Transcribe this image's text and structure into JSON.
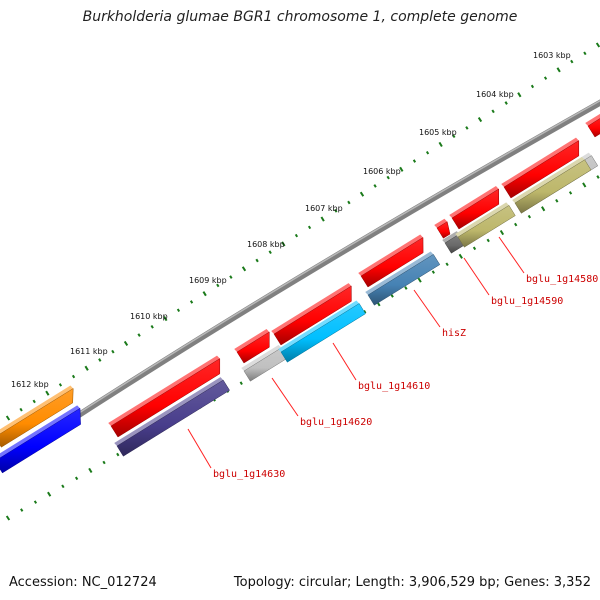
{
  "title": "Burkholderia glumae BGR1 chromosome 1, complete genome",
  "footer": {
    "accession": "Accession: NC_012724",
    "summary": "Topology: circular; Length: 3,906,529 bp; Genes: 3,352"
  },
  "colors": {
    "backbone": "#808080",
    "ticks": "#1a7a1a",
    "label": "#cc0000",
    "leader": "#ff2222"
  },
  "ticks": [
    "1603 kbp",
    "1604 kbp",
    "1605 kbp",
    "1606 kbp",
    "1607 kbp",
    "1608 kbp",
    "1609 kbp",
    "1610 kbp",
    "1611 kbp",
    "1612 kbp"
  ],
  "genes": [
    {
      "label": "",
      "color": "#ff8c00",
      "track": "outer"
    },
    {
      "label": "",
      "color": "#0000ff",
      "track": "outer"
    },
    {
      "label": "",
      "color": "#ff0000",
      "track": "inner"
    },
    {
      "label": "bglu_1g14630",
      "color": "#483d8b",
      "track": "inner"
    },
    {
      "label": "",
      "color": "#ff0000",
      "track": "inner"
    },
    {
      "label": "bglu_1g14620",
      "color": "#c0c0c0",
      "track": "inner"
    },
    {
      "label": "",
      "color": "#ff0000",
      "track": "inner"
    },
    {
      "label": "bglu_1g14610",
      "color": "#00bfff",
      "track": "inner"
    },
    {
      "label": "",
      "color": "#ff0000",
      "track": "inner"
    },
    {
      "label": "hisZ",
      "color": "#4682b4",
      "track": "inner"
    },
    {
      "label": "",
      "color": "#ff0000",
      "track": "inner"
    },
    {
      "label": "bglu_1g14590",
      "color": "#696969",
      "track": "inner"
    },
    {
      "label": "",
      "color": "#ff0000",
      "track": "inner"
    },
    {
      "label": "",
      "color": "#ff0000",
      "track": "inner"
    },
    {
      "label": "bglu_1g14580",
      "color": "#bdb76b",
      "track": "inner"
    },
    {
      "label": "",
      "color": "#ff0000",
      "track": "inner"
    },
    {
      "label": "",
      "color": "#c0c0c0",
      "track": "inner"
    }
  ]
}
